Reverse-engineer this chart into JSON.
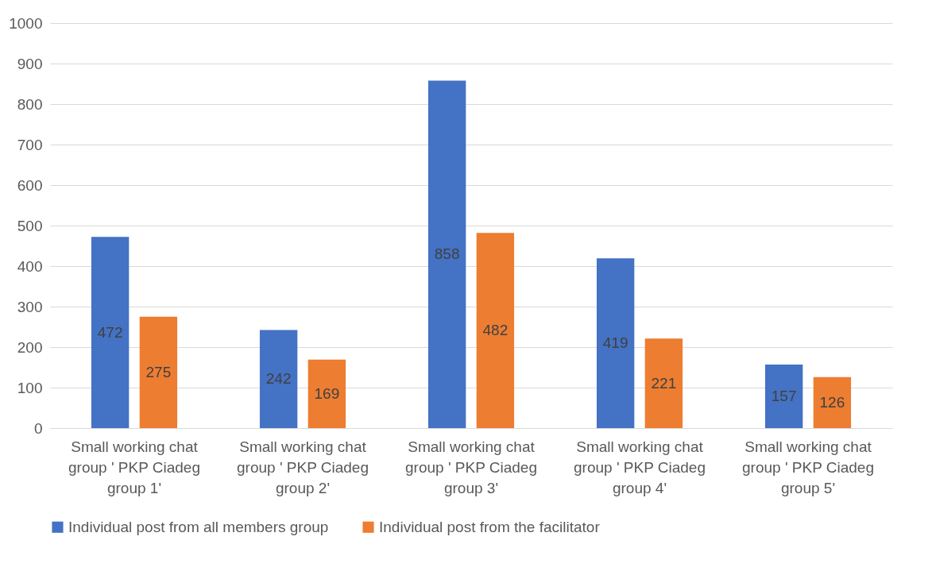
{
  "chart_data": {
    "type": "bar",
    "categories": [
      "Small working chat group ' PKP Ciadeg group 1'",
      "Small working chat group ' PKP Ciadeg group 2'",
      "Small working chat group ' PKP Ciadeg group 3'",
      "Small working chat group ' PKP Ciadeg group 4'",
      "Small working chat group ' PKP Ciadeg group 5'"
    ],
    "series": [
      {
        "name": "Individual post from all members group",
        "color": "#4472c4",
        "values": [
          472,
          242,
          858,
          419,
          157
        ]
      },
      {
        "name": "Individual post from the facilitator",
        "color": "#ed7d31",
        "values": [
          275,
          169,
          482,
          221,
          126
        ]
      }
    ],
    "ylim": [
      0,
      1000
    ],
    "yticks": [
      0,
      100,
      200,
      300,
      400,
      500,
      600,
      700,
      800,
      900,
      1000
    ],
    "grid": "y",
    "legend": "bottom",
    "data_labels": true
  }
}
